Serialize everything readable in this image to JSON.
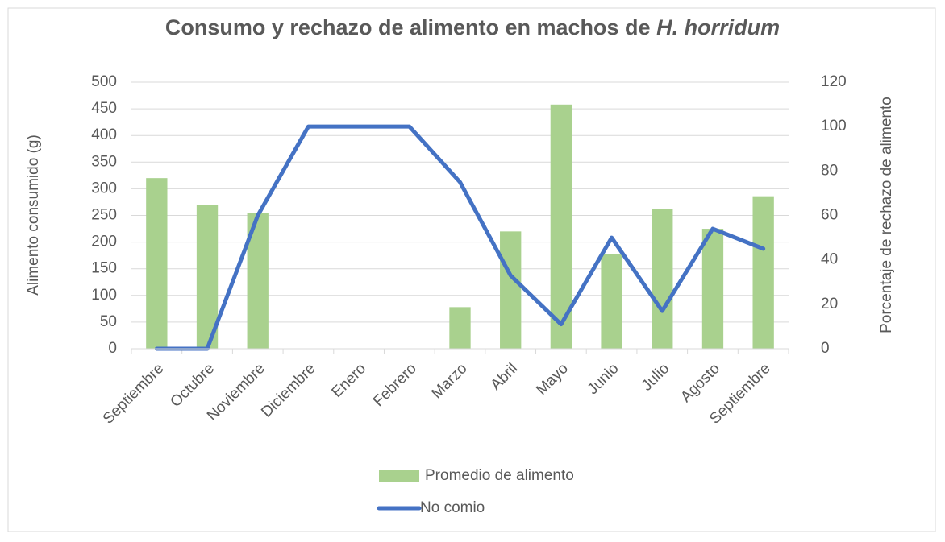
{
  "chart_data": {
    "type": "bar_line",
    "title": "Consumo y rechazo de alimento en machos de",
    "title_italic": "H. horridum",
    "y_label": "Alimento consumido (g)",
    "y2_label": "Porcentaje de rechazo de alimento",
    "categories": [
      "Septiembre",
      "Octubre",
      "Noviembre",
      "Diciembre",
      "Enero",
      "Febrero",
      "Marzo",
      "Abril",
      "Mayo",
      "Junio",
      "Julio",
      "Agosto",
      "Septiembre"
    ],
    "series": [
      {
        "name": "Promedio de alimento",
        "type": "bar",
        "color": "#a9d18e",
        "values": [
          320,
          270,
          255,
          null,
          null,
          null,
          78,
          220,
          458,
          178,
          262,
          225,
          286
        ]
      },
      {
        "name": "No comio",
        "type": "line",
        "axis": "y2",
        "color": "#4472c4",
        "values": [
          0,
          0,
          60,
          100,
          100,
          100,
          75,
          33,
          11,
          50,
          17,
          54,
          45
        ]
      }
    ],
    "ylim": [
      0,
      500
    ],
    "yticks": [
      0,
      50,
      100,
      150,
      200,
      250,
      300,
      350,
      400,
      450,
      500
    ],
    "y2lim": [
      0,
      120
    ],
    "y2ticks": [
      0,
      20,
      40,
      60,
      80,
      100,
      120
    ],
    "grid": true,
    "legend": "bottom"
  }
}
